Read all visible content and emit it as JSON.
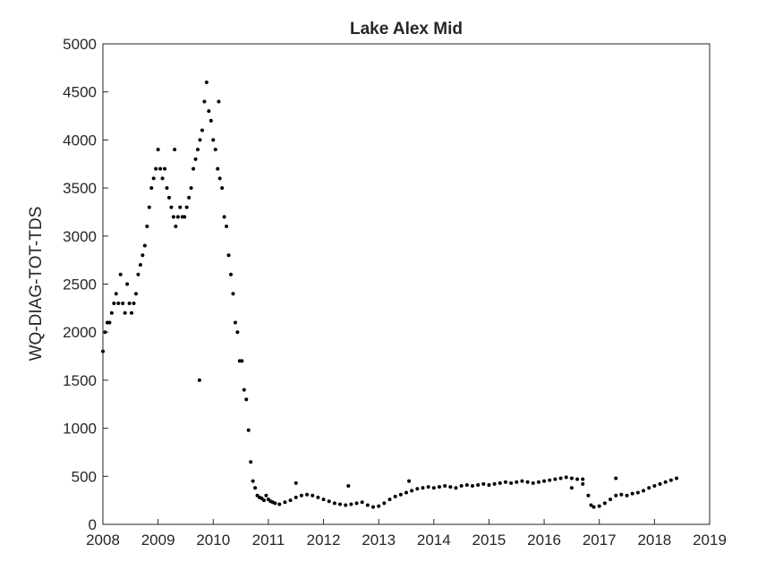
{
  "chart_data": {
    "type": "scatter",
    "title": "Lake Alex Mid",
    "xlabel": "",
    "ylabel": "WQ-DIAG-TOT-TDS",
    "xlim": [
      2008,
      2019
    ],
    "ylim": [
      0,
      5000
    ],
    "xticks": [
      "2008",
      "2009",
      "2010",
      "2011",
      "2012",
      "2013",
      "2014",
      "2015",
      "2016",
      "2017",
      "2018",
      "2019"
    ],
    "yticks": [
      "0",
      "500",
      "1000",
      "1500",
      "2000",
      "2500",
      "3000",
      "3500",
      "4000",
      "4500",
      "5000"
    ],
    "grid": false,
    "marker_color": "#000000",
    "series": [
      {
        "x": [
          2008.0,
          2008.04,
          2008.08,
          2008.12,
          2008.16,
          2008.2,
          2008.24,
          2008.28,
          2008.32,
          2008.36,
          2008.4,
          2008.44,
          2008.48,
          2008.52,
          2008.56,
          2008.6,
          2008.64,
          2008.68,
          2008.72,
          2008.76,
          2008.8,
          2008.84,
          2008.88,
          2008.92,
          2008.96,
          2009.0,
          2009.04,
          2009.08,
          2009.12,
          2009.16,
          2009.2,
          2009.24,
          2009.28,
          2009.32,
          2009.36,
          2009.4,
          2009.44,
          2009.48,
          2009.52,
          2009.56,
          2009.6,
          2009.64,
          2009.68,
          2009.72,
          2009.76,
          2009.8,
          2009.84,
          2009.88,
          2009.92,
          2009.96,
          2010.0,
          2010.04,
          2010.08,
          2010.12,
          2010.16,
          2010.2,
          2010.24,
          2010.28,
          2010.32,
          2010.36,
          2010.4,
          2010.44,
          2010.48,
          2010.52,
          2010.56,
          2010.6,
          2010.64,
          2010.68,
          2010.72,
          2010.76,
          2010.8,
          2010.84,
          2010.88,
          2010.92,
          2010.96,
          2011.0,
          2011.04,
          2011.08,
          2011.12,
          2011.2,
          2011.3,
          2011.4,
          2011.5,
          2011.6,
          2011.7,
          2011.8,
          2011.9,
          2012.0,
          2012.1,
          2012.2,
          2012.3,
          2012.4,
          2012.5,
          2012.6,
          2012.7,
          2012.8,
          2012.9,
          2013.0,
          2013.1,
          2013.2,
          2013.3,
          2013.4,
          2013.5,
          2013.6,
          2013.7,
          2013.8,
          2013.9,
          2014.0,
          2014.1,
          2014.2,
          2014.3,
          2014.4,
          2014.5,
          2014.6,
          2014.7,
          2014.8,
          2014.9,
          2015.0,
          2015.1,
          2015.2,
          2015.3,
          2015.4,
          2015.5,
          2015.6,
          2015.7,
          2015.8,
          2015.9,
          2016.0,
          2016.1,
          2016.2,
          2016.3,
          2016.4,
          2016.5,
          2016.6,
          2016.7,
          2016.8,
          2016.85,
          2016.9,
          2017.0,
          2017.1,
          2017.2,
          2017.3,
          2017.4,
          2017.5,
          2017.6,
          2017.7,
          2017.8,
          2017.9,
          2018.0,
          2018.1,
          2018.2,
          2018.3,
          2018.4,
          2009.75,
          2009.3,
          2010.1,
          2011.5,
          2012.45,
          2013.55,
          2016.5,
          2017.3,
          2016.7
        ],
        "y": [
          1800,
          2000,
          2100,
          2100,
          2200,
          2300,
          2400,
          2300,
          2600,
          2300,
          2200,
          2500,
          2300,
          2200,
          2300,
          2400,
          2600,
          2700,
          2800,
          2900,
          3100,
          3300,
          3500,
          3600,
          3700,
          3900,
          3700,
          3600,
          3700,
          3500,
          3400,
          3300,
          3200,
          3100,
          3200,
          3300,
          3200,
          3200,
          3300,
          3400,
          3500,
          3700,
          3800,
          3900,
          4000,
          4100,
          4400,
          4600,
          4300,
          4200,
          4000,
          3900,
          3700,
          3600,
          3500,
          3200,
          3100,
          2800,
          2600,
          2400,
          2100,
          2000,
          1700,
          1700,
          1400,
          1300,
          980,
          650,
          450,
          380,
          300,
          280,
          270,
          250,
          300,
          260,
          240,
          230,
          220,
          210,
          230,
          250,
          280,
          300,
          310,
          300,
          280,
          260,
          240,
          220,
          210,
          200,
          210,
          220,
          230,
          200,
          180,
          190,
          220,
          260,
          290,
          310,
          330,
          350,
          370,
          380,
          390,
          380,
          390,
          400,
          390,
          380,
          400,
          410,
          400,
          410,
          420,
          410,
          420,
          430,
          440,
          430,
          440,
          450,
          440,
          430,
          440,
          450,
          460,
          470,
          480,
          490,
          480,
          470,
          420,
          300,
          200,
          180,
          190,
          220,
          260,
          300,
          310,
          300,
          320,
          330,
          350,
          380,
          400,
          420,
          440,
          460,
          480,
          1500,
          3900,
          4400,
          430,
          400,
          450,
          380,
          480,
          470
        ]
      }
    ]
  }
}
